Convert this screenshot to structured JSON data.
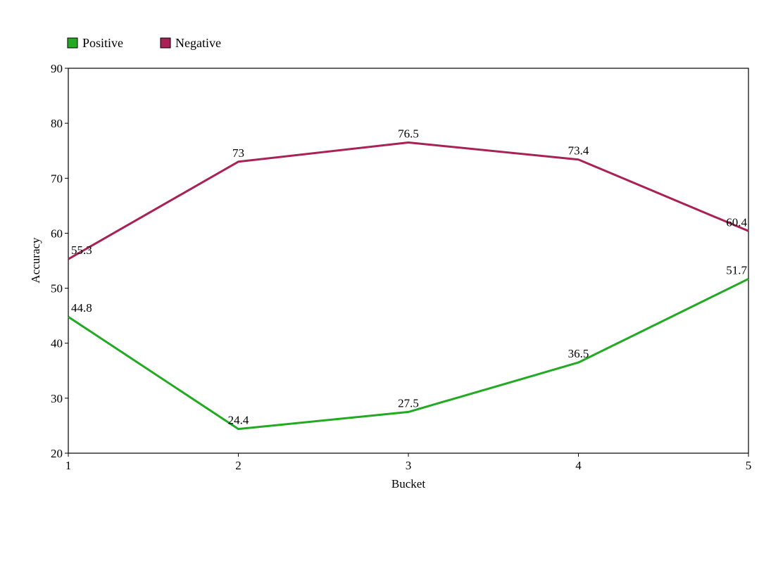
{
  "chart_data": {
    "type": "line",
    "title": "",
    "xlabel": "Bucket",
    "ylabel": "Accuracy",
    "categories": [
      "1",
      "2",
      "3",
      "4",
      "5"
    ],
    "ylim": [
      20,
      90
    ],
    "yticks": [
      20,
      30,
      40,
      50,
      60,
      70,
      80,
      90
    ],
    "grid": false,
    "legend_position": "top-left",
    "series": [
      {
        "name": "Positive",
        "color": "#22aa22",
        "values": [
          44.8,
          24.4,
          27.5,
          36.5,
          51.7
        ]
      },
      {
        "name": "Negative",
        "color": "#aa2255",
        "values": [
          55.3,
          73,
          76.5,
          73.4,
          60.4
        ]
      }
    ]
  }
}
